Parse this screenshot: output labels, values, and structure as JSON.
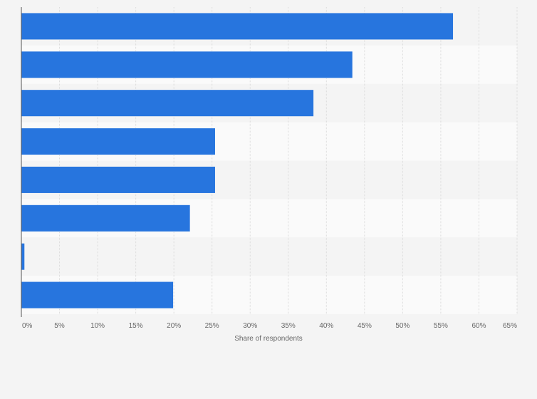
{
  "chart_data": {
    "type": "bar",
    "orientation": "horizontal",
    "title": "",
    "xlabel": "Share of respondents",
    "ylabel": "",
    "categories": [
      "",
      "",
      "",
      "",
      "",
      "",
      "",
      ""
    ],
    "values": [
      56.6,
      43.4,
      38.3,
      25.4,
      25.4,
      22.1,
      0.4,
      19.9
    ],
    "xlim": [
      0,
      65
    ],
    "xticks": [
      0,
      5,
      10,
      15,
      20,
      25,
      30,
      35,
      40,
      45,
      50,
      55,
      60,
      65
    ],
    "xtick_labels": [
      "0%",
      "5%",
      "10%",
      "15%",
      "20%",
      "25%",
      "30%",
      "35%",
      "40%",
      "45%",
      "50%",
      "55%",
      "60%",
      "65%"
    ],
    "grid": true,
    "legend": "none"
  },
  "colors": {
    "bar": "#2775de",
    "background": "#f4f4f4",
    "band_odd": "#f4f4f4",
    "band_even": "#fafafa",
    "grid": "#dcdcdc",
    "axis": "#555555"
  }
}
